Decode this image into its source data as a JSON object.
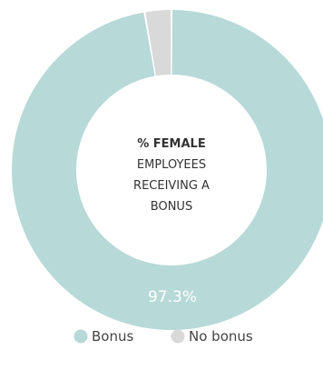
{
  "chart_data": {
    "type": "pie",
    "donut": true,
    "center_text": {
      "line1": "% FEMALE",
      "line2": "EMPLOYEES",
      "line3": "RECEIVING A",
      "line4": "BONUS"
    },
    "slices": [
      {
        "label": "Bonus",
        "value": 97.3,
        "color": "#b7d9d8",
        "data_label": "97.3%"
      },
      {
        "label": "No bonus",
        "value": 2.7,
        "color": "#d9d9d9",
        "data_label": ""
      }
    ],
    "legend": {
      "position": "bottom",
      "items": [
        "Bonus",
        "No bonus"
      ]
    },
    "background": "#ffffff"
  }
}
